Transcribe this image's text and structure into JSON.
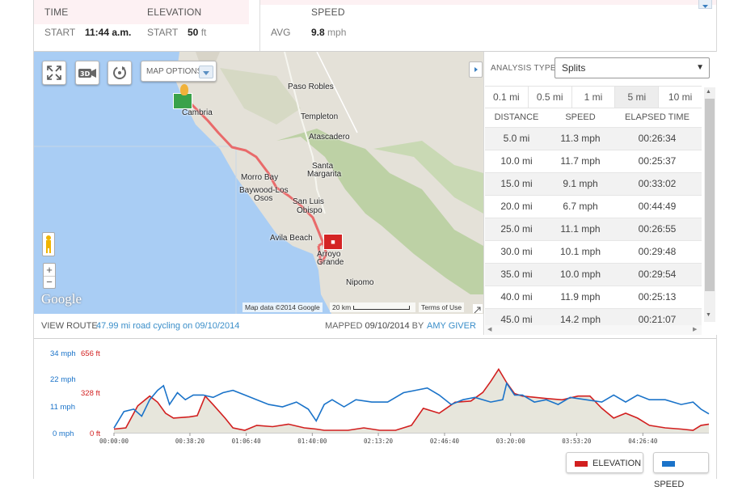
{
  "summary": {
    "time_label": "TIME",
    "elevation_label": "ELEVATION",
    "speed_label": "SPEED",
    "start_time_sub": "START",
    "start_time_val": "11:44 a.m.",
    "start_elev_sub": "START",
    "start_elev_val": "50",
    "start_elev_unit": "ft",
    "avg_sub": "AVG",
    "avg_val": "9.8",
    "avg_unit": "mph"
  },
  "map": {
    "options_label": "MAP OPTIONS",
    "places": [
      "Paso Robles",
      "Cambria",
      "Templeton",
      "Atascadero",
      "Santa",
      "Margarita",
      "Morro Bay",
      "Baywood-Los",
      "Osos",
      "San Luis",
      "Obispo",
      "Avila Beach",
      "Arroyo",
      "Grande",
      "Nipomo"
    ],
    "attribution": "Map data ©2014 Google",
    "scale": "20 km",
    "terms": "Terms of Use",
    "logo": "Google",
    "route_color": "#e96a6a"
  },
  "info": {
    "view_route_label": "VIEW ROUTE",
    "route_title": "47.99 mi road cycling on 09/10/2014",
    "mapped_label": "MAPPED",
    "mapped_date": "09/10/2014",
    "by_label": "BY",
    "author": "AMY GIVER"
  },
  "splits": {
    "analysis_label": "ANALYSIS TYPE:",
    "analysis_value": "Splits",
    "tabs": [
      "0.1 mi",
      "0.5 mi",
      "1 mi",
      "5 mi",
      "10 mi"
    ],
    "active_tab": "5 mi",
    "headers": [
      "DISTANCE",
      "SPEED",
      "ELAPSED TIME"
    ],
    "rows": [
      [
        "5.0 mi",
        "11.3 mph",
        "00:26:34"
      ],
      [
        "10.0 mi",
        "11.7 mph",
        "00:25:37"
      ],
      [
        "15.0 mi",
        "9.1 mph",
        "00:33:02"
      ],
      [
        "20.0 mi",
        "6.7 mph",
        "00:44:49"
      ],
      [
        "25.0 mi",
        "11.1 mph",
        "00:26:55"
      ],
      [
        "30.0 mi",
        "10.1 mph",
        "00:29:48"
      ],
      [
        "35.0 mi",
        "10.0 mph",
        "00:29:54"
      ],
      [
        "40.0 mi",
        "11.9 mph",
        "00:25:13"
      ],
      [
        "45.0 mi",
        "14.2 mph",
        "00:21:07"
      ]
    ]
  },
  "legend": {
    "elevation": "ELEVATION",
    "speed": "SPEED",
    "elevation_color": "#d21f1f",
    "speed_color": "#1a73c9"
  },
  "chart_data": {
    "type": "line",
    "y_speed_ticks": [
      "34 mph",
      "22 mph",
      "11 mph",
      "0 mph"
    ],
    "y_elev_ticks": [
      "656 ft",
      "328 ft",
      "0 ft"
    ],
    "x_ticks": [
      "00:00:00",
      "00:38:20",
      "01:06:40",
      "01:40:00",
      "02:13:20",
      "02:46:40",
      "03:20:00",
      "03:53:20",
      "04:26:40"
    ],
    "x_minutes": [
      0,
      38.3,
      66.7,
      100,
      133.3,
      166.7,
      200,
      233.3,
      266.7
    ],
    "ylim_speed": [
      0,
      34
    ],
    "ylim_elevation": [
      0,
      656
    ],
    "series": [
      {
        "name": "SPEED",
        "unit": "mph",
        "x": [
          0,
          5,
          10,
          14,
          18,
          22,
          25,
          28,
          32,
          36,
          40,
          45,
          50,
          55,
          60,
          66,
          72,
          78,
          85,
          92,
          98,
          102,
          106,
          110,
          116,
          122,
          130,
          138,
          146,
          152,
          158,
          164,
          170,
          176,
          182,
          190,
          196,
          198,
          202,
          206,
          212,
          218,
          224,
          230,
          238,
          246,
          252,
          258,
          264,
          270,
          278,
          286,
          292,
          296,
          300
        ],
        "y": [
          2,
          9,
          10,
          7,
          14,
          18,
          20,
          12,
          17,
          14,
          16,
          16,
          15,
          17,
          18,
          16,
          14,
          12,
          11,
          13,
          10,
          5,
          12,
          14,
          11,
          14,
          13,
          13,
          17,
          18,
          19,
          16,
          12,
          14,
          15,
          13,
          14,
          21,
          16,
          16,
          13,
          14,
          12,
          15,
          14,
          13,
          16,
          13,
          16,
          14,
          14,
          12,
          13,
          10,
          8
        ]
      },
      {
        "name": "ELEVATION",
        "unit": "ft",
        "x": [
          0,
          6,
          12,
          18,
          22,
          26,
          30,
          38,
          42,
          46,
          50,
          56,
          60,
          66,
          72,
          80,
          88,
          96,
          102,
          106,
          110,
          118,
          126,
          134,
          142,
          150,
          156,
          164,
          172,
          180,
          186,
          190,
          194,
          198,
          202,
          206,
          212,
          218,
          226,
          234,
          240,
          246,
          252,
          258,
          264,
          270,
          278,
          286,
          292,
          296,
          300
        ],
        "y": [
          30,
          40,
          220,
          300,
          250,
          160,
          120,
          130,
          140,
          300,
          230,
          120,
          40,
          20,
          60,
          50,
          70,
          40,
          30,
          20,
          20,
          20,
          40,
          20,
          20,
          60,
          200,
          160,
          250,
          260,
          330,
          420,
          520,
          410,
          320,
          300,
          290,
          280,
          270,
          300,
          300,
          200,
          120,
          160,
          120,
          60,
          40,
          30,
          20,
          60,
          70
        ]
      }
    ]
  }
}
